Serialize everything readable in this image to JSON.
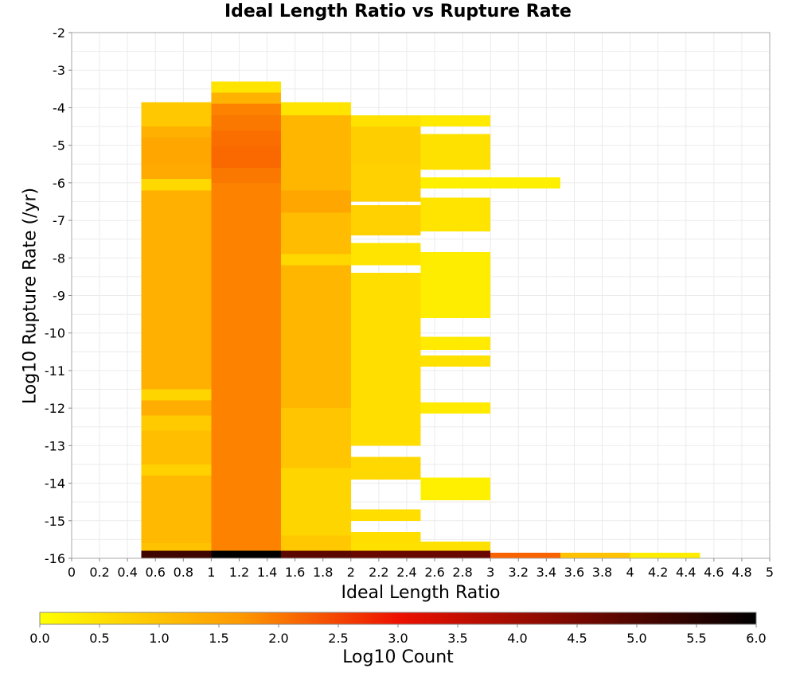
{
  "chart_data": {
    "type": "heatmap",
    "title": "Ideal Length Ratio vs Rupture Rate",
    "xlabel": "Ideal Length Ratio",
    "ylabel": "Log10 Rupture Rate (/yr)",
    "xlim": [
      0,
      5
    ],
    "ylim": [
      -16,
      -2
    ],
    "x_ticks": [
      "0",
      "0.2",
      "0.4",
      "0.6",
      "0.8",
      "1",
      "1.2",
      "1.4",
      "1.6",
      "1.8",
      "2",
      "2.2",
      "2.4",
      "2.6",
      "2.8",
      "3",
      "3.2",
      "3.4",
      "3.6",
      "3.8",
      "4",
      "4.2",
      "4.4",
      "4.6",
      "4.8",
      "5"
    ],
    "y_ticks": [
      "-2",
      "-3",
      "-4",
      "-5",
      "-6",
      "-7",
      "-8",
      "-9",
      "-10",
      "-11",
      "-12",
      "-13",
      "-14",
      "-15",
      "-16"
    ],
    "grid": true,
    "colorbar": {
      "label": "Log10 Count",
      "range": [
        0,
        6
      ],
      "ticks": [
        "0.0",
        "0.5",
        "1.0",
        "1.5",
        "2.0",
        "2.5",
        "3.0",
        "3.5",
        "4.0",
        "4.5",
        "5.0",
        "5.5",
        "6.0"
      ],
      "colors": [
        "#ffff00",
        "#ff9900",
        "#ee1100",
        "#000000"
      ]
    },
    "cell_size": {
      "x": 0.5,
      "y": 0.2
    },
    "columns": [
      {
        "x_start": 0.5,
        "x_end": 1.0,
        "segments": [
          [
            -16.0,
            -15.8,
            5.2
          ],
          [
            -15.8,
            -15.6,
            1.0
          ],
          [
            -15.6,
            -13.8,
            1.15
          ],
          [
            -13.8,
            -13.5,
            0.75
          ],
          [
            -13.5,
            -12.6,
            1.05
          ],
          [
            -12.6,
            -12.2,
            0.85
          ],
          [
            -12.2,
            -11.8,
            1.35
          ],
          [
            -11.8,
            -11.5,
            0.7
          ],
          [
            -11.5,
            -6.2,
            1.3
          ],
          [
            -6.2,
            -5.9,
            0.65
          ],
          [
            -5.9,
            -5.5,
            1.4
          ],
          [
            -5.5,
            -4.8,
            1.45
          ],
          [
            -4.8,
            -4.5,
            1.3
          ],
          [
            -4.5,
            -3.85,
            0.9
          ]
        ]
      },
      {
        "x_start": 1.0,
        "x_end": 1.5,
        "segments": [
          [
            -16.0,
            -15.8,
            6.0
          ],
          [
            -15.8,
            -6.0,
            1.9
          ],
          [
            -6.0,
            -5.6,
            2.0
          ],
          [
            -5.6,
            -5.0,
            2.15
          ],
          [
            -5.0,
            -4.6,
            2.1
          ],
          [
            -4.6,
            -4.2,
            2.0
          ],
          [
            -4.2,
            -3.9,
            1.9
          ],
          [
            -3.9,
            -3.6,
            1.25
          ],
          [
            -3.6,
            -3.3,
            0.45
          ]
        ]
      },
      {
        "x_start": 1.5,
        "x_end": 2.0,
        "segments": [
          [
            -16.0,
            -15.8,
            4.85
          ],
          [
            -15.8,
            -15.4,
            0.9
          ],
          [
            -15.4,
            -13.6,
            0.7
          ],
          [
            -13.6,
            -12.0,
            0.95
          ],
          [
            -12.0,
            -8.2,
            1.2
          ],
          [
            -8.2,
            -7.9,
            0.65
          ],
          [
            -7.9,
            -6.8,
            1.1
          ],
          [
            -6.8,
            -6.2,
            1.45
          ],
          [
            -6.2,
            -5.8,
            1.2
          ],
          [
            -5.8,
            -4.2,
            1.2
          ],
          [
            -4.2,
            -3.85,
            0.45
          ]
        ]
      },
      {
        "x_start": 2.0,
        "x_end": 2.5,
        "segments": [
          [
            -16.0,
            -15.8,
            4.7
          ],
          [
            -15.8,
            -15.6,
            0.5
          ],
          [
            -15.6,
            -15.3,
            0.55
          ],
          [
            -15.0,
            -14.7,
            0.55
          ],
          [
            -13.9,
            -13.3,
            0.65
          ],
          [
            -13.0,
            -8.4,
            0.55
          ],
          [
            -8.2,
            -7.6,
            0.45
          ],
          [
            -7.4,
            -6.6,
            0.75
          ],
          [
            -6.5,
            -5.5,
            0.75
          ],
          [
            -5.5,
            -4.5,
            0.8
          ],
          [
            -4.5,
            -4.2,
            0.5
          ]
        ]
      },
      {
        "x_start": 2.5,
        "x_end": 3.0,
        "segments": [
          [
            -16.0,
            -15.8,
            4.7
          ],
          [
            -15.8,
            -15.55,
            0.5
          ],
          [
            -14.45,
            -13.85,
            0.25
          ],
          [
            -12.15,
            -11.85,
            0.35
          ],
          [
            -10.9,
            -10.6,
            0.5
          ],
          [
            -10.45,
            -10.1,
            0.35
          ],
          [
            -9.6,
            -7.85,
            0.3
          ],
          [
            -7.3,
            -6.4,
            0.45
          ],
          [
            -6.15,
            -5.85,
            0.25
          ],
          [
            -5.65,
            -4.7,
            0.5
          ],
          [
            -4.5,
            -4.2,
            0.35
          ]
        ]
      },
      {
        "x_start": 3.0,
        "x_end": 3.5,
        "segments": [
          [
            -16.0,
            -15.85,
            2.2
          ],
          [
            -6.15,
            -5.85,
            0.25
          ]
        ]
      },
      {
        "x_start": 3.5,
        "x_end": 4.0,
        "segments": [
          [
            -16.0,
            -15.85,
            1.0
          ]
        ]
      },
      {
        "x_start": 4.0,
        "x_end": 4.5,
        "segments": [
          [
            -16.0,
            -15.85,
            0.3
          ]
        ]
      }
    ]
  }
}
